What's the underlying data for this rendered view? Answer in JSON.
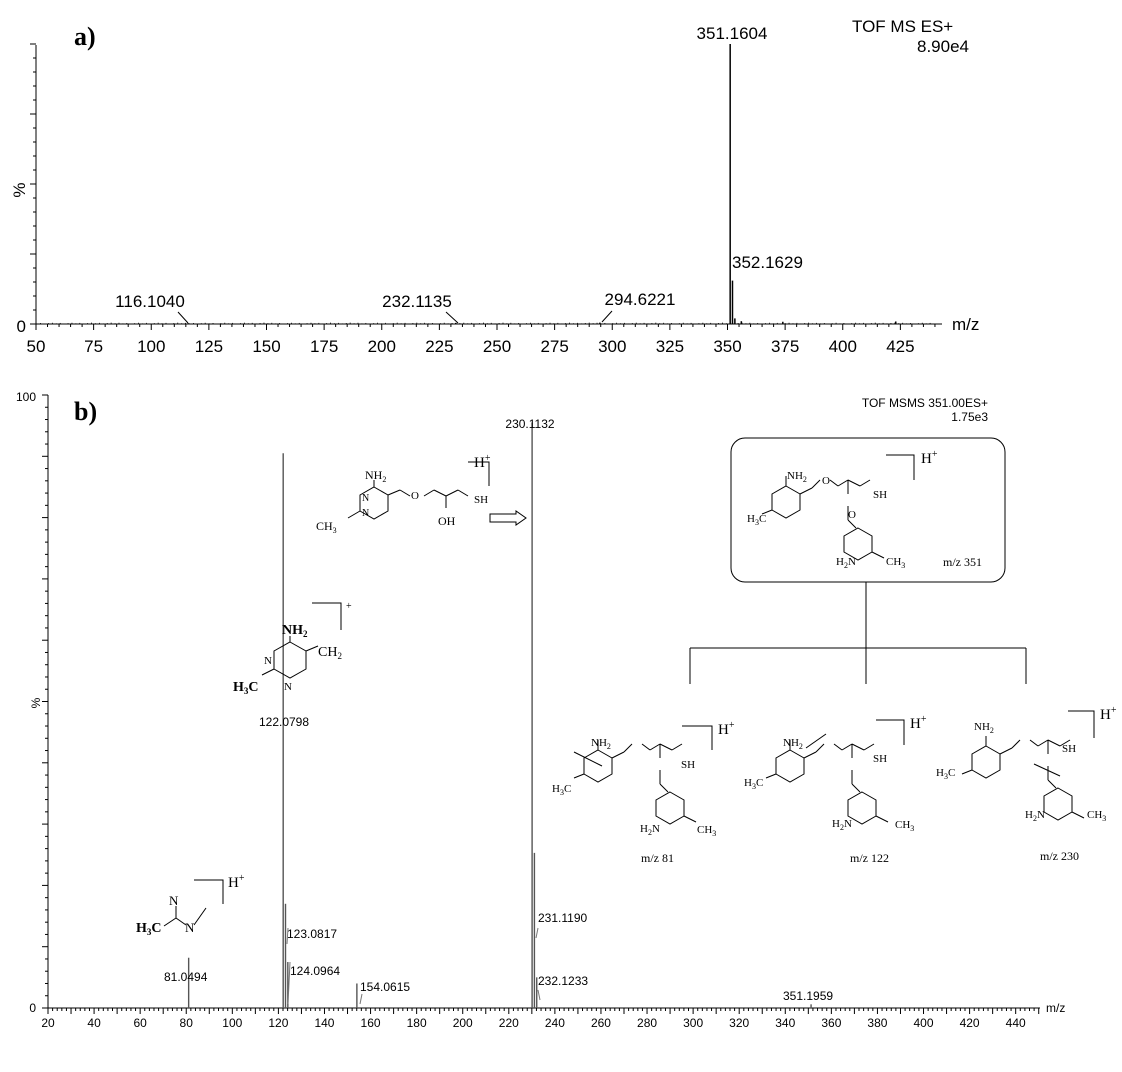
{
  "chart_data": [
    {
      "type": "bar",
      "panel_label": "a)",
      "instrument": "TOF MS ES+",
      "intensity": "8.90e4",
      "ylabel": "%",
      "xlabel": "m/z",
      "y_zero_label": "0",
      "xlim": [
        50,
        440
      ],
      "ylim": [
        0,
        100
      ],
      "x_ticks": [
        "50",
        "75",
        "100",
        "125",
        "150",
        "175",
        "200",
        "225",
        "250",
        "275",
        "300",
        "325",
        "350",
        "375",
        "400",
        "425"
      ],
      "peaks": [
        {
          "x": 351.1604,
          "y": 100
        },
        {
          "x": 352.1629,
          "y": 15.5
        },
        {
          "x": 353.2,
          "y": 2.0
        },
        {
          "x": 356.0,
          "y": 1.0
        },
        {
          "x": 116.104,
          "y": 0.3
        },
        {
          "x": 232.1135,
          "y": 0.4
        },
        {
          "x": 294.6221,
          "y": 0.5
        },
        {
          "x": 374.0,
          "y": 0.8
        },
        {
          "x": 423.0,
          "y": 0.9
        }
      ],
      "peak_labels": [
        "351.1604",
        "352.1629",
        "116.1040",
        "232.1135",
        "294.6221"
      ]
    },
    {
      "type": "bar",
      "panel_label": "b)",
      "instrument": "TOF MSMS 351.00ES+",
      "intensity": "1.75e3",
      "ylabel": "%",
      "xlabel": "m/z",
      "y_top_label": "100",
      "y_zero_label": "0",
      "xlim": [
        20,
        450
      ],
      "ylim": [
        0,
        100
      ],
      "x_ticks": [
        "20",
        "40",
        "60",
        "80",
        "100",
        "120",
        "140",
        "160",
        "180",
        "200",
        "220",
        "240",
        "260",
        "280",
        "300",
        "320",
        "340",
        "360",
        "380",
        "400",
        "420",
        "440"
      ],
      "peaks": [
        {
          "x": 230.1132,
          "y": 95.5
        },
        {
          "x": 122.0798,
          "y": 90.5
        },
        {
          "x": 123.0817,
          "y": 17.0
        },
        {
          "x": 231.119,
          "y": 25.3
        },
        {
          "x": 124.0964,
          "y": 7.5
        },
        {
          "x": 81.0494,
          "y": 8.2
        },
        {
          "x": 154.0615,
          "y": 4.0
        },
        {
          "x": 232.1233,
          "y": 5.0
        },
        {
          "x": 351.1959,
          "y": 0.6
        }
      ],
      "peak_labels": [
        "230.1132",
        "122.0798",
        "123.0817",
        "124.0964",
        "81.0494",
        "154.0615",
        "231.1190",
        "232.1233",
        "351.1959"
      ]
    }
  ],
  "structures": {
    "frag_230": {
      "nh2": "NH",
      "nh2_sub": "2",
      "ch3": "CH",
      "ch3_sub": "3",
      "oh": "OH",
      "sh": "SH",
      "h": "H",
      "plus": "+"
    },
    "frag_122": {
      "nh2": "NH",
      "nh2_sub": "2",
      "ch2": "CH",
      "ch2_sub": "2",
      "h3c": "H",
      "h3c_sub": "3",
      "h3c_c": "C",
      "plus": "+"
    },
    "frag_81": {
      "h3c": "H",
      "h3c_sub": "3",
      "h3c_c": "C",
      "n": "N",
      "h": "H",
      "plus": "+"
    },
    "parent": {
      "nh2": "NH",
      "nh2_sub": "2",
      "h3c": "H",
      "h3c_sub": "3",
      "h3c_c": "C",
      "h2n": "H",
      "h2n_sub": "2",
      "h2n_n": "N",
      "ch3": "CH",
      "ch3_sub": "3",
      "sh": "SH",
      "o": "O",
      "n": "N",
      "h": "H",
      "plus": "+",
      "mz": "m/z 351"
    },
    "frag_mz": [
      "m/z 81",
      "m/z 122",
      "m/z 230"
    ]
  }
}
